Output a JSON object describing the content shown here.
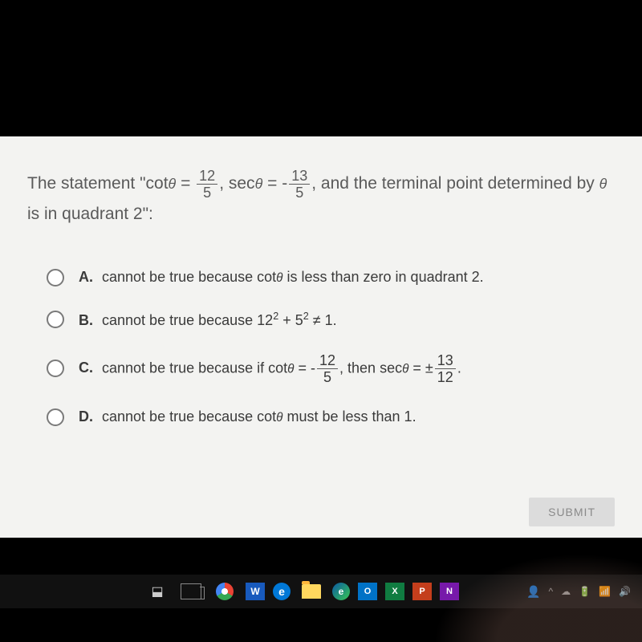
{
  "question": {
    "stem_pre": "The statement \"cot",
    "theta1": "θ",
    "eq1": " = ",
    "frac1": {
      "num": "12",
      "den": "5"
    },
    "comma1": ", sec",
    "theta2": "θ",
    "eq2": " = ",
    "neg2": " -",
    "frac2": {
      "num": "13",
      "den": "5"
    },
    "tail": ", and the terminal point determined by ",
    "theta3": "θ",
    "line2": "is in quadrant 2\":"
  },
  "choices": {
    "A": {
      "letter": "A.",
      "pre": "cannot be true because cot",
      "theta": "θ",
      "post": " is less than zero in quadrant 2."
    },
    "B": {
      "letter": "B.",
      "pre": "cannot be true because ",
      "b12": "12",
      "sq1": "2",
      "plus": " + ",
      "b5": "5",
      "sq2": "2",
      "neq": " ≠ 1."
    },
    "C": {
      "letter": "C.",
      "pre": "cannot be true because if cot",
      "theta1": "θ",
      "mid": " = ",
      "neg": " -",
      "frac1": {
        "num": "12",
        "den": "5"
      },
      "then": ", then sec",
      "theta2": "θ",
      "eq2": " = ±",
      "frac2": {
        "num": "13",
        "den": "12"
      },
      "dot": "."
    },
    "D": {
      "letter": "D.",
      "pre": "cannot be true because cot",
      "theta": "θ",
      "post": " must be less than 1."
    }
  },
  "submit": "SUBMIT",
  "taskbar": {
    "word": "W",
    "edge_old": "e",
    "edge": "e",
    "outlook": "O",
    "excel": "X",
    "ppt": "P",
    "onenote": "N",
    "people": "👤",
    "up": "^"
  }
}
